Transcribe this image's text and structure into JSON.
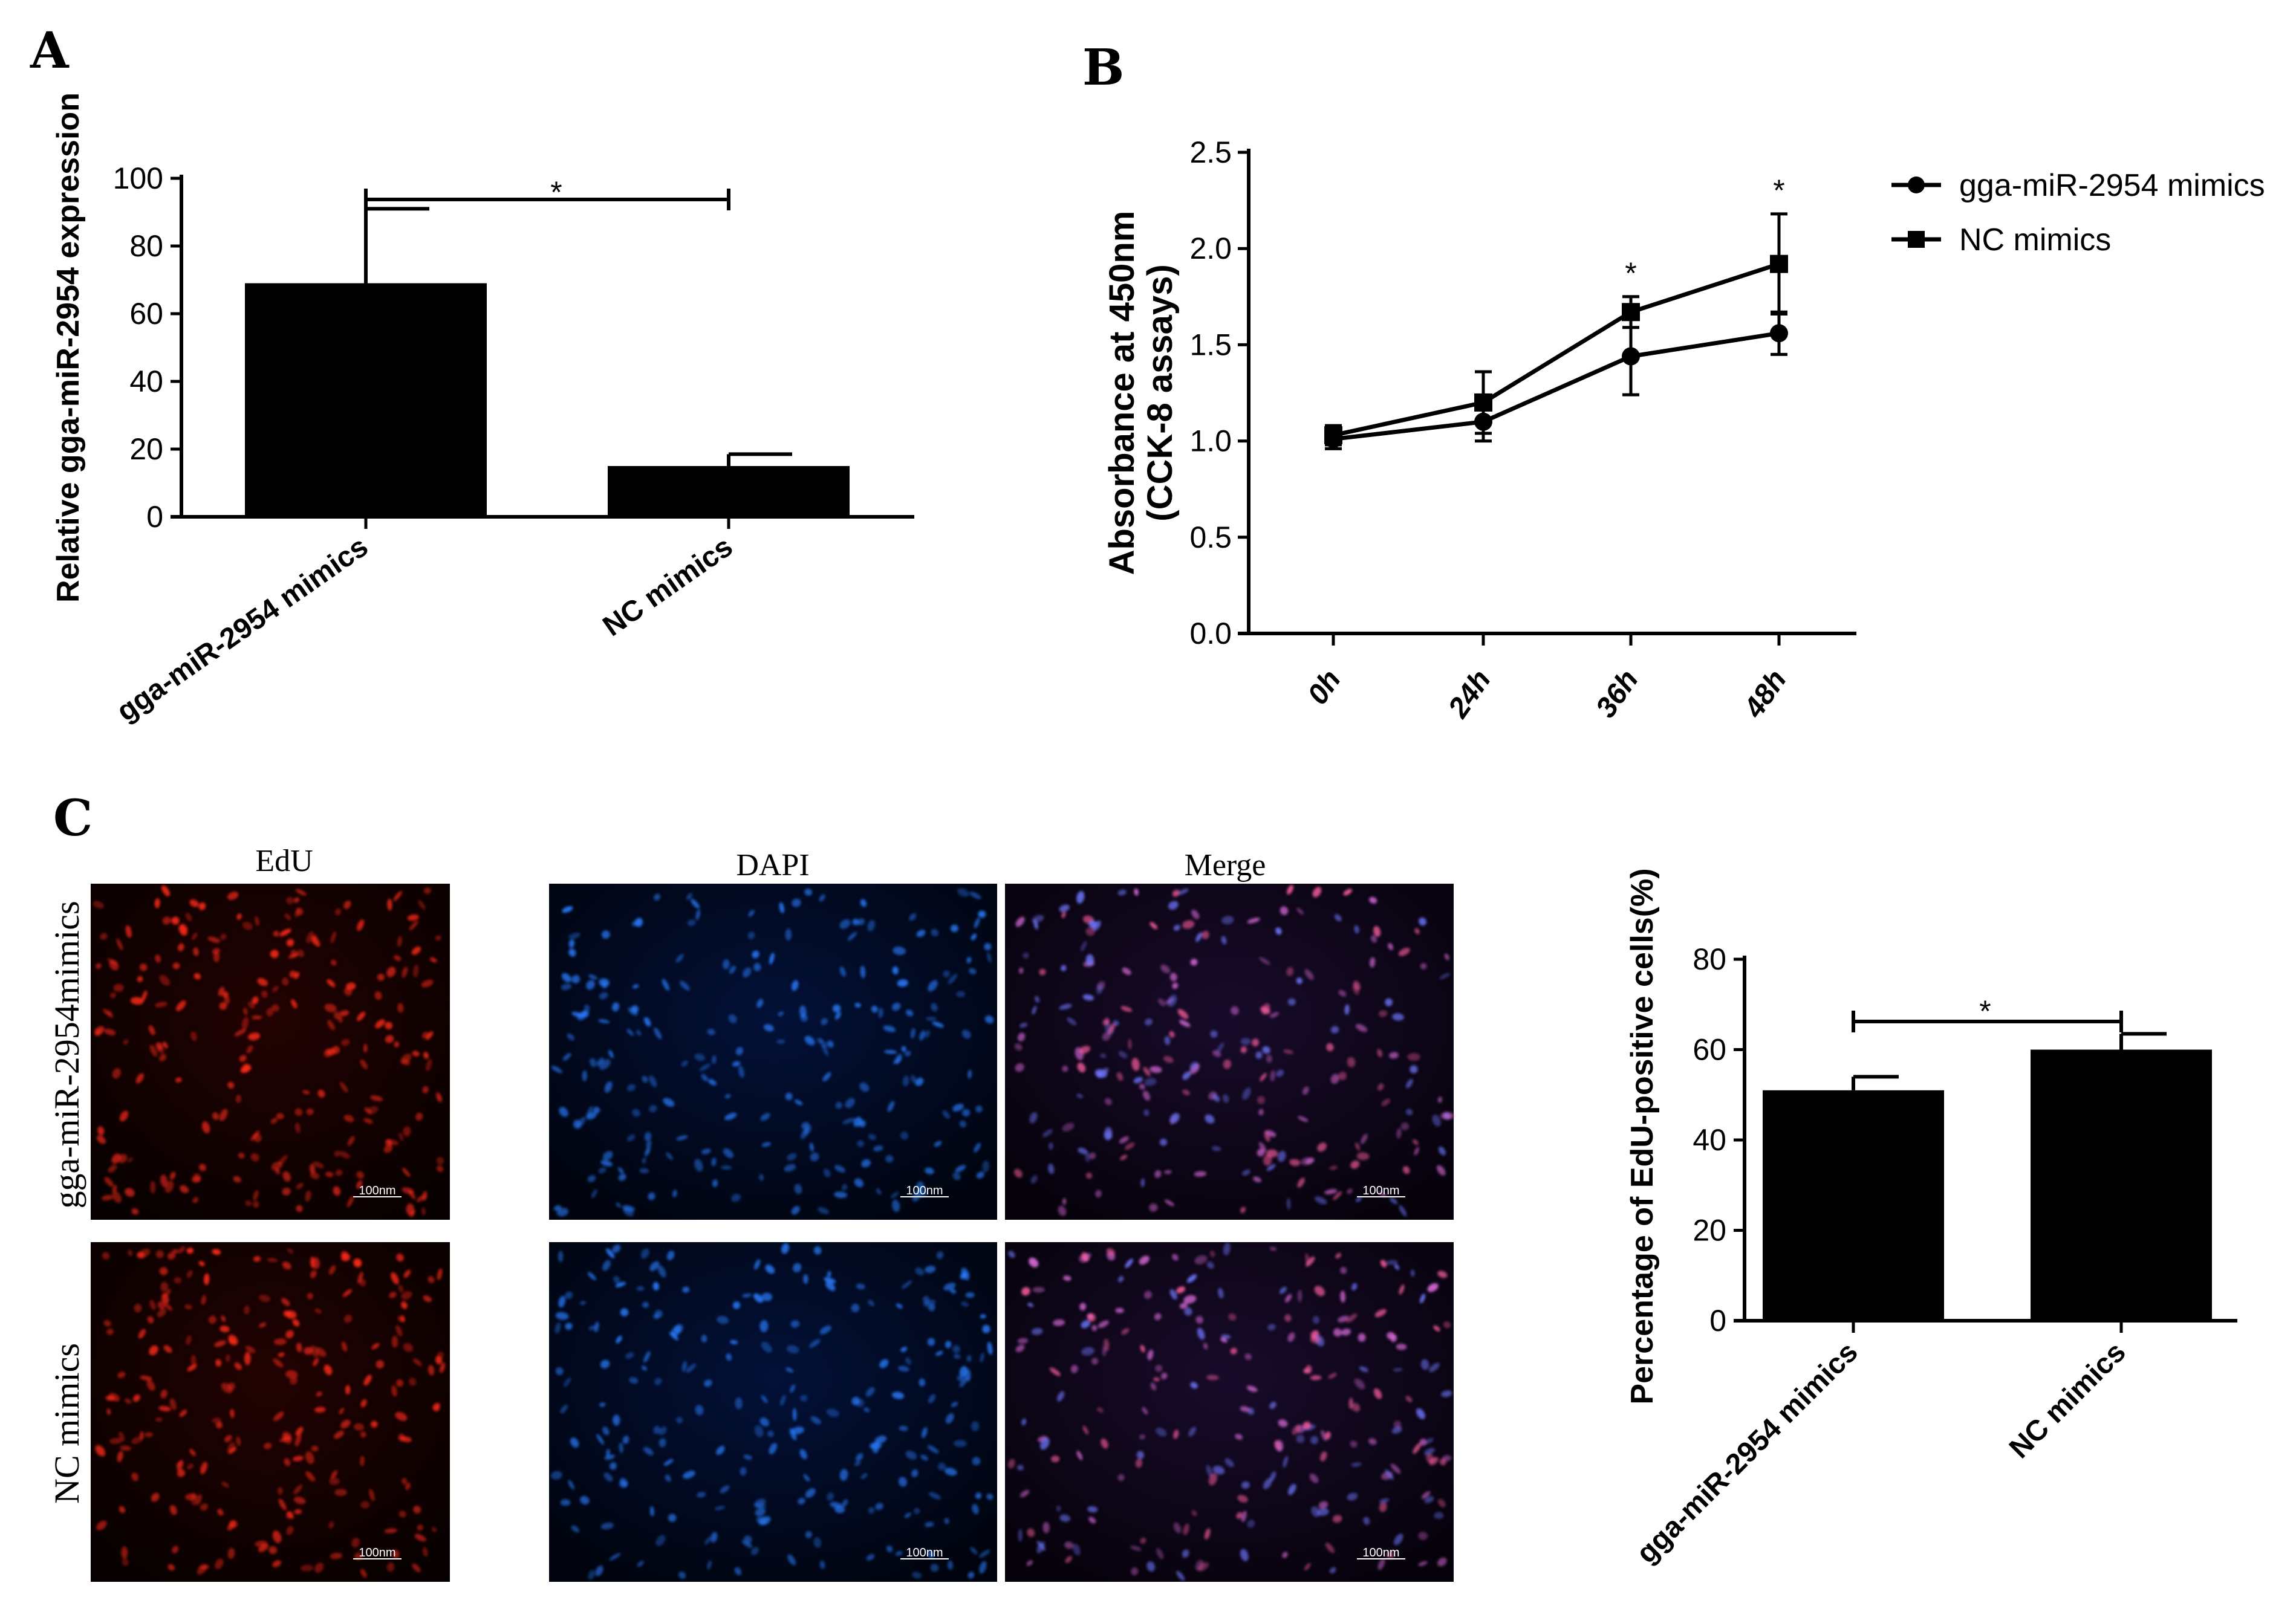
{
  "panel_labels": {
    "a": "A",
    "b": "B",
    "c": "C"
  },
  "chart_data": [
    {
      "id": "A",
      "type": "bar",
      "categories": [
        "gga-miR-2954 mimics",
        "NC mimics"
      ],
      "values": [
        69,
        15
      ],
      "errors": [
        22,
        3.5
      ],
      "ylabel": "Relative gga-miR-2954 expression",
      "xlabel": "",
      "ylim": [
        0,
        100
      ],
      "yticks": [
        "0",
        "20",
        "40",
        "60",
        "80",
        "100"
      ],
      "significance": "*"
    },
    {
      "id": "B",
      "type": "line",
      "x": [
        "0h",
        "24h",
        "36h",
        "48h"
      ],
      "series": [
        {
          "name": "gga-miR-2954 mimics",
          "marker": "circle",
          "values": [
            1.01,
            1.1,
            1.44,
            1.56
          ],
          "errors": [
            0.05,
            0.1,
            0.2,
            0.11
          ]
        },
        {
          "name": "NC mimics",
          "marker": "square",
          "values": [
            1.03,
            1.2,
            1.67,
            1.92
          ],
          "errors": [
            0.05,
            0.16,
            0.08,
            0.26
          ]
        }
      ],
      "ylabel_lines": [
        "Absorbance at 450nm",
        "(CCK-8 assays)"
      ],
      "ylim": [
        0,
        2.5
      ],
      "yticks": [
        "0.0",
        "0.5",
        "1.0",
        "1.5",
        "2.0",
        "2.5"
      ],
      "significance": [
        "",
        "",
        "*",
        "*"
      ]
    },
    {
      "id": "C",
      "type": "bar",
      "categories": [
        "gga-miR-2954 mimics",
        "NC mimics"
      ],
      "values": [
        51,
        60
      ],
      "errors": [
        3,
        3.5
      ],
      "ylabel": "Percentage of EdU-positive cells(%)",
      "xlabel": "",
      "ylim": [
        0,
        80
      ],
      "yticks": [
        "0",
        "20",
        "40",
        "60",
        "80"
      ],
      "significance": "*"
    }
  ],
  "micrographs": {
    "columns": [
      "EdU",
      "DAPI",
      "Merge"
    ],
    "rows": [
      "gga-miR-2954mimics",
      "NC mimics"
    ],
    "scale_bar": "100nm",
    "colors": {
      "EdU": "#ff2a1a",
      "DAPI": "#2a7dff",
      "Merge": "#d86ad8"
    }
  }
}
